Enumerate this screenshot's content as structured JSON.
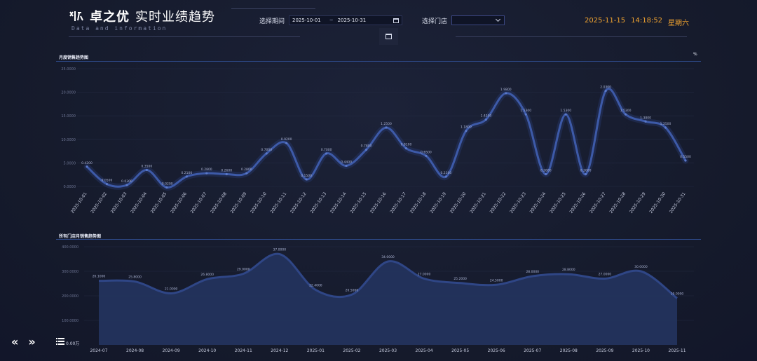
{
  "header": {
    "logo_text": "卓之优",
    "title": "实时业绩趋势",
    "subtitle": "Data and information",
    "period_label": "选择期间",
    "date_start": "2025-10-01",
    "date_separator": "~",
    "date_end": "2025-10-31",
    "store_label": "选择门店",
    "store_value": "",
    "date": "2025-11-15",
    "time": "14:18:52",
    "weekday": "星期六"
  },
  "icons": {
    "logo": "brand-logo-icon",
    "calendar": "calendar-icon",
    "clear": "clear-icon",
    "dropdown": "chevron-down-icon",
    "prev": "double-chevron-left-icon",
    "next": "double-chevron-right-icon",
    "menu": "list-menu-icon"
  },
  "colors": {
    "accent": "#f0a330",
    "line": "#3d5aa8",
    "area": "#23345f",
    "background": "#161b2e"
  },
  "daily_chart": {
    "title": "月度销售趋势图",
    "pct_label": "%"
  },
  "monthly_chart": {
    "title": "所有门店月销售趋势图"
  },
  "footer": {
    "unit_label": "0.00万"
  },
  "chart_data": [
    {
      "type": "line",
      "title": "月度销售趋势图",
      "categories": [
        "2025-10-01",
        "2025-10-02",
        "2025-10-03",
        "2025-10-04",
        "2025-10-05",
        "2025-10-06",
        "2025-10-07",
        "2025-10-08",
        "2025-10-09",
        "2025-10-10",
        "2025-10-11",
        "2025-10-12",
        "2025-10-13",
        "2025-10-14",
        "2025-10-15",
        "2025-10-16",
        "2025-10-17",
        "2025-10-18",
        "2025-10-19",
        "2025-10-20",
        "2025-10-21",
        "2025-10-22",
        "2025-10-23",
        "2025-10-24",
        "2025-10-25",
        "2025-10-26",
        "2025-10-27",
        "2025-10-28",
        "2025-10-29",
        "2025-10-30",
        "2025-10-31"
      ],
      "values": [
        4200,
        500,
        300,
        3500,
        -200,
        2100,
        2800,
        2600,
        2800,
        7000,
        9200,
        1500,
        7000,
        4400,
        7800,
        12500,
        8100,
        6500,
        2100,
        11800,
        14200,
        19800,
        15300,
        2600,
        15300,
        2600,
        20300,
        15300,
        13800,
        12500,
        5500
      ],
      "ylim": [
        0,
        25000
      ],
      "yticks": [
        "0.0000",
        "5.0000",
        "10.0000",
        "15.0000",
        "20.0000",
        "25.0000"
      ],
      "grid": true
    },
    {
      "type": "area",
      "title": "所有门店月销售趋势图",
      "categories": [
        "2024-07",
        "2024-08",
        "2024-09",
        "2024-10",
        "2024-11",
        "2024-12",
        "2025-01",
        "2025-02",
        "2025-03",
        "2025-04",
        "2025-05",
        "2025-06",
        "2025-07",
        "2025-08",
        "2025-09",
        "2025-10",
        "2025-11"
      ],
      "values": [
        261000,
        258000,
        210000,
        268000,
        290000,
        370000,
        224000,
        205000,
        340000,
        270000,
        252000,
        245000,
        280000,
        288000,
        270000,
        300000,
        190000
      ],
      "ylim": [
        0,
        400000
      ],
      "yticks": [
        "100.0000",
        "200.0000",
        "300.0000",
        "400.0000"
      ],
      "grid": true
    }
  ]
}
